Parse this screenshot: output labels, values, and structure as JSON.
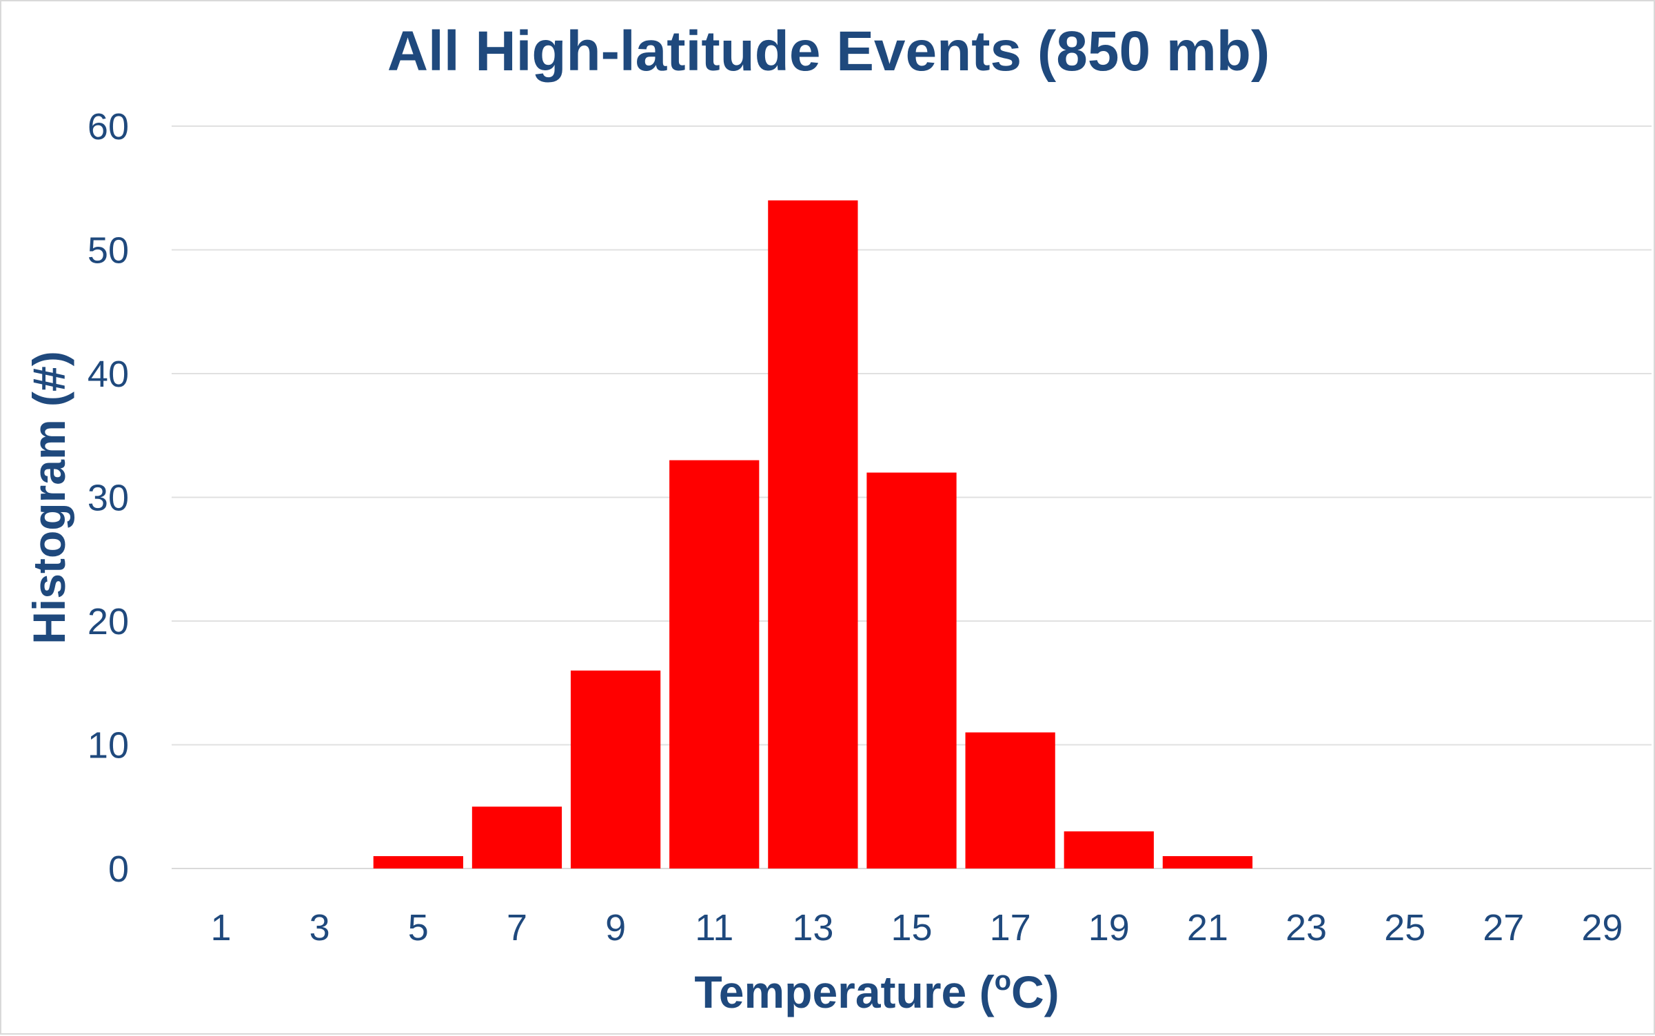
{
  "chart_data": {
    "type": "bar",
    "title": "All High-latitude Events (850 mb)",
    "xlabel_main": "Temperature (",
    "xlabel_sup": "o",
    "xlabel_end": "C)",
    "ylabel": "Histogram (#)",
    "categories": [
      "1",
      "3",
      "5",
      "7",
      "9",
      "11",
      "13",
      "15",
      "17",
      "19",
      "21",
      "23",
      "25",
      "27",
      "29"
    ],
    "values": [
      0,
      0,
      1,
      5,
      16,
      33,
      54,
      32,
      11,
      3,
      1,
      0,
      0,
      0,
      0
    ],
    "ylim": [
      0,
      60
    ],
    "yticks": [
      0,
      10,
      20,
      30,
      40,
      50,
      60
    ],
    "grid": true,
    "legend": "none",
    "bar_color": "#ff0000",
    "text_color": "#1f497d",
    "grid_color": "#e0e0e0"
  }
}
